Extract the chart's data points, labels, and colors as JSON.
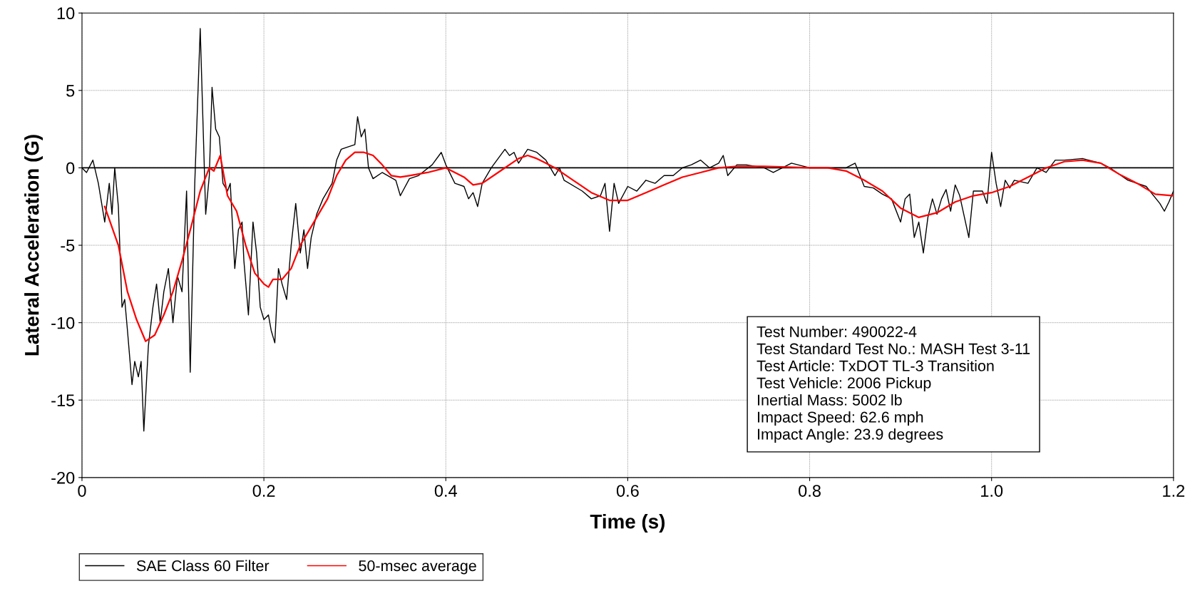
{
  "chart_data": {
    "type": "line",
    "xlabel": "Time (s)",
    "ylabel": "Lateral Acceleration (G)",
    "xlim": [
      0,
      1.2
    ],
    "xticks": [
      0,
      0.2,
      0.4,
      0.6,
      0.8,
      {
        "value": 1.0,
        "label": "1.0"
      },
      1.2
    ],
    "ylim": [
      -20,
      10
    ],
    "yticks": [
      -20,
      -15,
      -10,
      -5,
      0,
      5,
      10
    ],
    "grid": true,
    "legend": "bottom",
    "ref_lines": [
      {
        "axis": "y",
        "value": 0,
        "color": "#000000"
      }
    ],
    "annotations": [
      "Test Number: 490022-4",
      "Test Standard Test No.: MASH Test 3-11",
      "Test Article: TxDOT TL-3 Transition",
      "Test Vehicle: 2006 Pickup",
      "Inertial Mass: 5002 lb",
      "Impact Speed: 62.6 mph",
      "Impact Angle: 23.9 degrees"
    ],
    "series": [
      {
        "name": "SAE Class 60 Filter",
        "color": "#000000",
        "x": [
          0,
          0.005,
          0.012,
          0.018,
          0.025,
          0.03,
          0.033,
          0.036,
          0.04,
          0.044,
          0.047,
          0.05,
          0.055,
          0.058,
          0.062,
          0.065,
          0.068,
          0.073,
          0.078,
          0.082,
          0.086,
          0.09,
          0.095,
          0.1,
          0.105,
          0.11,
          0.115,
          0.119,
          0.124,
          0.13,
          0.136,
          0.14,
          0.143,
          0.147,
          0.151,
          0.155,
          0.16,
          0.163,
          0.168,
          0.172,
          0.176,
          0.178,
          0.183,
          0.188,
          0.192,
          0.196,
          0.2,
          0.205,
          0.208,
          0.212,
          0.216,
          0.22,
          0.225,
          0.23,
          0.235,
          0.24,
          0.244,
          0.248,
          0.252,
          0.258,
          0.265,
          0.275,
          0.28,
          0.285,
          0.29,
          0.3,
          0.303,
          0.307,
          0.311,
          0.315,
          0.32,
          0.33,
          0.345,
          0.35,
          0.36,
          0.37,
          0.385,
          0.395,
          0.4,
          0.41,
          0.42,
          0.425,
          0.43,
          0.435,
          0.44,
          0.45,
          0.465,
          0.47,
          0.475,
          0.48,
          0.49,
          0.5,
          0.51,
          0.52,
          0.525,
          0.53,
          0.55,
          0.56,
          0.57,
          0.575,
          0.58,
          0.585,
          0.59,
          0.6,
          0.61,
          0.62,
          0.63,
          0.64,
          0.65,
          0.66,
          0.67,
          0.68,
          0.69,
          0.7,
          0.705,
          0.71,
          0.72,
          0.73,
          0.75,
          0.76,
          0.78,
          0.8,
          0.82,
          0.84,
          0.85,
          0.86,
          0.87,
          0.88,
          0.89,
          0.9,
          0.905,
          0.91,
          0.915,
          0.92,
          0.925,
          0.93,
          0.935,
          0.94,
          0.945,
          0.95,
          0.955,
          0.96,
          0.965,
          0.975,
          0.98,
          0.99,
          0.995,
          1.0,
          1.005,
          1.01,
          1.015,
          1.02,
          1.025,
          1.04,
          1.05,
          1.06,
          1.07,
          1.08,
          1.1,
          1.12,
          1.13,
          1.15,
          1.17,
          1.185,
          1.19,
          1.195,
          1.2
        ],
        "values": [
          0,
          -0.3,
          0.5,
          -1,
          -3.5,
          -1,
          -3,
          0,
          -2.5,
          -9,
          -8.5,
          -10.5,
          -14,
          -12.5,
          -13.5,
          -12.5,
          -17,
          -11.5,
          -9,
          -7.5,
          -10,
          -8,
          -6.5,
          -10,
          -7,
          -8,
          -1.5,
          -13.2,
          -1,
          9,
          -3,
          -0.5,
          5.2,
          2.5,
          2,
          -1,
          -1.5,
          -1,
          -6.5,
          -4,
          -3.5,
          -6,
          -9.5,
          -3.5,
          -5.5,
          -9,
          -9.8,
          -9.5,
          -10.5,
          -11.3,
          -6.5,
          -7.5,
          -8.5,
          -5,
          -2.3,
          -5.5,
          -4,
          -6.5,
          -4.5,
          -3,
          -2,
          -1,
          0.5,
          1.2,
          1.3,
          1.5,
          3.3,
          2,
          2.5,
          0,
          -0.7,
          -0.3,
          -0.8,
          -1.8,
          -0.7,
          -0.5,
          0.2,
          1,
          0.2,
          -1,
          -1.2,
          -2,
          -1.6,
          -2.5,
          -1,
          0,
          1.2,
          0.8,
          1,
          0.3,
          1.2,
          1,
          0.5,
          -0.5,
          0,
          -0.8,
          -1.5,
          -2,
          -1.8,
          -1,
          -4.1,
          -1,
          -2.3,
          -1.2,
          -1.5,
          -0.8,
          -1,
          -0.5,
          -0.5,
          0,
          0.2,
          0.5,
          0,
          0.3,
          0.8,
          -0.5,
          0.2,
          0.2,
          0,
          -0.3,
          0.3,
          0,
          0,
          0,
          0.3,
          -1.2,
          -1.3,
          -1.7,
          -2,
          -3.5,
          -2,
          -1.7,
          -4.5,
          -3.5,
          -5.5,
          -3.2,
          -2,
          -3,
          -2,
          -1.4,
          -2.8,
          -1.1,
          -1.8,
          -4.5,
          -1.5,
          -1.5,
          -2.3,
          1,
          -1,
          -2.5,
          -0.8,
          -1.3,
          -0.8,
          -1,
          0,
          -0.3,
          0.5,
          0.5,
          0.6,
          0.3,
          0,
          -0.8,
          -1.2,
          -2.3,
          -2.8,
          -2.2,
          -1.5
        ]
      },
      {
        "name": "50-msec average",
        "color": "#ff0000",
        "x": [
          0.025,
          0.04,
          0.05,
          0.06,
          0.07,
          0.08,
          0.09,
          0.1,
          0.11,
          0.12,
          0.13,
          0.14,
          0.145,
          0.152,
          0.16,
          0.17,
          0.18,
          0.19,
          0.2,
          0.205,
          0.21,
          0.22,
          0.23,
          0.24,
          0.25,
          0.26,
          0.27,
          0.28,
          0.29,
          0.3,
          0.31,
          0.32,
          0.33,
          0.34,
          0.35,
          0.36,
          0.38,
          0.4,
          0.42,
          0.43,
          0.44,
          0.46,
          0.48,
          0.49,
          0.5,
          0.52,
          0.54,
          0.56,
          0.58,
          0.6,
          0.62,
          0.64,
          0.66,
          0.68,
          0.7,
          0.72,
          0.75,
          0.8,
          0.82,
          0.84,
          0.86,
          0.88,
          0.9,
          0.92,
          0.94,
          0.96,
          0.98,
          1.0,
          1.02,
          1.04,
          1.06,
          1.08,
          1.1,
          1.12,
          1.14,
          1.16,
          1.18,
          1.2
        ],
        "values": [
          -2.5,
          -5,
          -8,
          -9.8,
          -11.2,
          -10.8,
          -9.5,
          -8,
          -6,
          -3.8,
          -1.5,
          0,
          -0.2,
          0.8,
          -1.8,
          -2.8,
          -5,
          -6.8,
          -7.5,
          -7.7,
          -7.2,
          -7.2,
          -6.5,
          -5,
          -4,
          -3,
          -2,
          -0.5,
          0.5,
          1,
          1,
          0.8,
          0.2,
          -0.5,
          -0.6,
          -0.5,
          -0.3,
          0,
          -0.6,
          -1.1,
          -1,
          -0.2,
          0.6,
          0.8,
          0.6,
          0,
          -0.8,
          -1.6,
          -2.1,
          -2.1,
          -1.6,
          -1.1,
          -0.6,
          -0.3,
          0,
          0.1,
          0.1,
          0,
          0,
          -0.2,
          -0.8,
          -1.5,
          -2.6,
          -3.2,
          -2.9,
          -2.2,
          -1.8,
          -1.6,
          -1.2,
          -0.6,
          0,
          0.4,
          0.5,
          0.3,
          -0.4,
          -1,
          -1.7,
          -1.8
        ]
      }
    ]
  }
}
